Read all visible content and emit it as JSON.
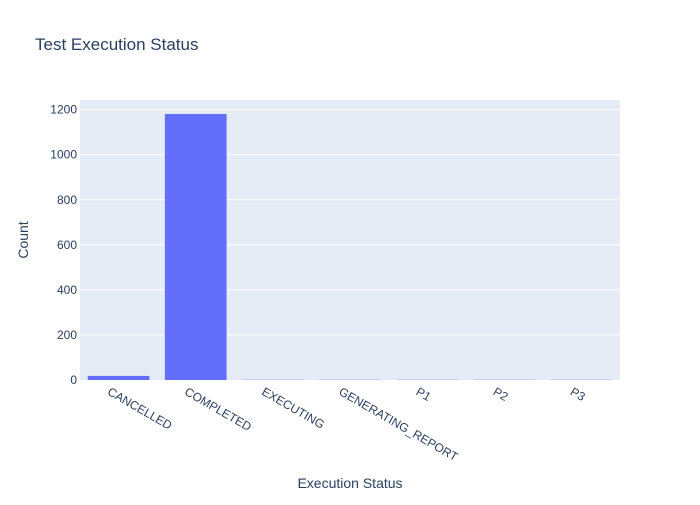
{
  "chart_data": {
    "type": "bar",
    "title": "Test Execution Status",
    "xlabel": "Execution Status",
    "ylabel": "Count",
    "categories": [
      "CANCELLED",
      "COMPLETED",
      "EXECUTING",
      "GENERATING_REPORT",
      "P1",
      "P2",
      "P3"
    ],
    "values": [
      18,
      1181,
      1,
      1,
      1,
      1,
      1
    ],
    "ylim": [
      0,
      1243
    ],
    "yticks": [
      0,
      200,
      400,
      600,
      800,
      1000,
      1200
    ],
    "grid": true,
    "legend": "none",
    "colors": {
      "bar": "#636efa",
      "plot_bg": "#e5ecf6",
      "grid": "#ffffff",
      "text": "#2a3f5f"
    }
  }
}
